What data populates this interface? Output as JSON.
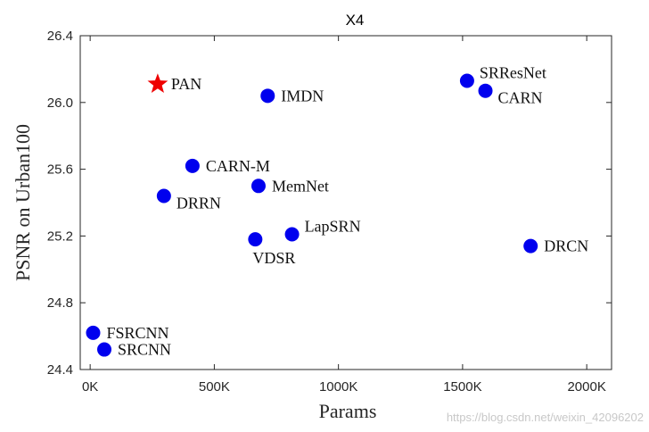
{
  "chart_data": {
    "type": "scatter",
    "title": "X4",
    "xlabel": "Params",
    "ylabel": "PSNR on Urban100",
    "xlim": [
      -40000,
      2100000
    ],
    "ylim": [
      24.4,
      26.4
    ],
    "x_ticks": [
      0,
      500000,
      1000000,
      1500000,
      2000000
    ],
    "x_tick_labels": [
      "0K",
      "500K",
      "1000K",
      "1500K",
      "2000K"
    ],
    "y_ticks": [
      24.4,
      24.8,
      25.2,
      25.6,
      26.0,
      26.4
    ],
    "y_tick_labels": [
      "24.4",
      "24.8",
      "25.2",
      "25.6",
      "26.0",
      "26.4"
    ],
    "grid": false,
    "colors": {
      "default_marker": "#0000ee",
      "highlight_marker": "#ee0000"
    },
    "points": [
      {
        "label": "PAN",
        "x": 272000,
        "y": 26.11,
        "marker": "star",
        "label_pos": "right"
      },
      {
        "label": "IMDN",
        "x": 715000,
        "y": 26.04,
        "marker": "circle",
        "label_pos": "right"
      },
      {
        "label": "SRResNet",
        "x": 1518000,
        "y": 26.13,
        "marker": "circle",
        "label_pos": "upper-right"
      },
      {
        "label": "CARN",
        "x": 1592000,
        "y": 26.07,
        "marker": "circle",
        "label_pos": "lower-right"
      },
      {
        "label": "CARN-M",
        "x": 412000,
        "y": 25.62,
        "marker": "circle",
        "label_pos": "right"
      },
      {
        "label": "MemNet",
        "x": 678000,
        "y": 25.5,
        "marker": "circle",
        "label_pos": "right"
      },
      {
        "label": "DRRN",
        "x": 297000,
        "y": 25.44,
        "marker": "circle",
        "label_pos": "lower-right"
      },
      {
        "label": "LapSRN",
        "x": 813000,
        "y": 25.21,
        "marker": "circle",
        "label_pos": "upper-right"
      },
      {
        "label": "VDSR",
        "x": 665000,
        "y": 25.18,
        "marker": "circle",
        "label_pos": "below"
      },
      {
        "label": "DRCN",
        "x": 1774000,
        "y": 25.14,
        "marker": "circle",
        "label_pos": "right"
      },
      {
        "label": "FSRCNN",
        "x": 12000,
        "y": 24.62,
        "marker": "circle",
        "label_pos": "right"
      },
      {
        "label": "SRCNN",
        "x": 57000,
        "y": 24.52,
        "marker": "circle",
        "label_pos": "right"
      }
    ]
  },
  "watermark": "https://blog.csdn.net/weixin_42096202"
}
